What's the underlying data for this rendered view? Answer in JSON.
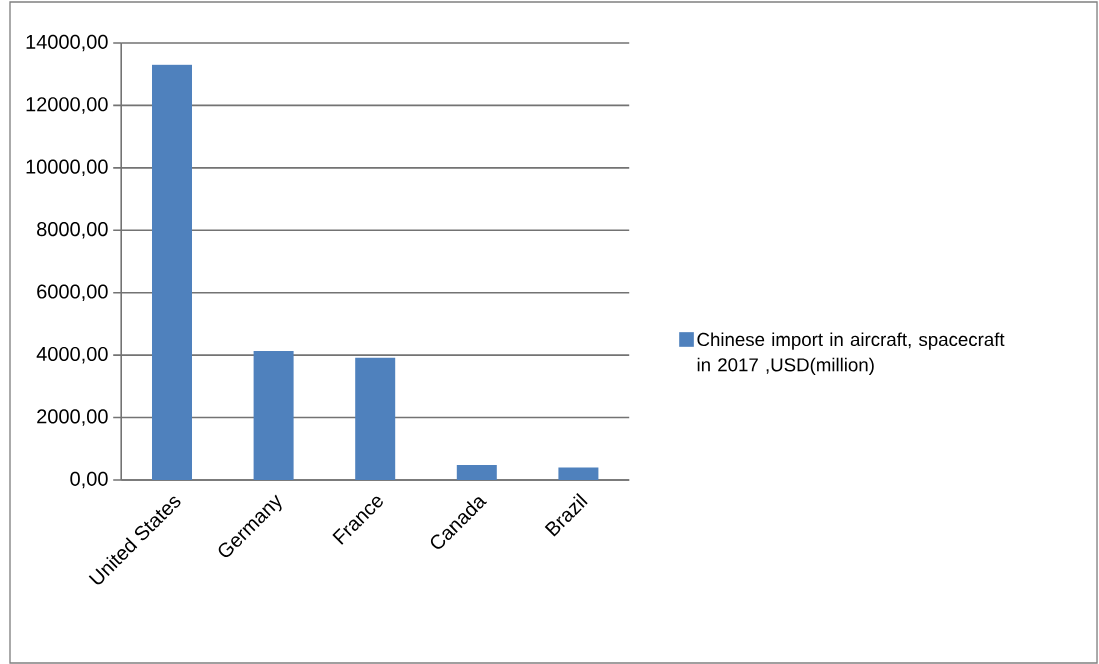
{
  "chart_data": {
    "type": "bar",
    "categories": [
      "United States",
      "Germany",
      "France",
      "Canada",
      "Brazil"
    ],
    "series": [
      {
        "name": "Chinese import in aircraft, spacecraft in 2017 ,USD(million)",
        "color": "#4f81bd",
        "values": [
          13300,
          4130,
          3920,
          480,
          400
        ]
      }
    ],
    "ylim": [
      0,
      14000
    ],
    "yticks": [
      {
        "value": 0,
        "label": "0,00"
      },
      {
        "value": 2000,
        "label": "2000,00"
      },
      {
        "value": 4000,
        "label": "4000,00"
      },
      {
        "value": 6000,
        "label": "6000,00"
      },
      {
        "value": 8000,
        "label": "8000,00"
      },
      {
        "value": 10000,
        "label": "10000,00"
      },
      {
        "value": 12000,
        "label": "12000,00"
      },
      {
        "value": 14000,
        "label": "14000,00"
      }
    ],
    "grid": "y",
    "legend": "right"
  }
}
